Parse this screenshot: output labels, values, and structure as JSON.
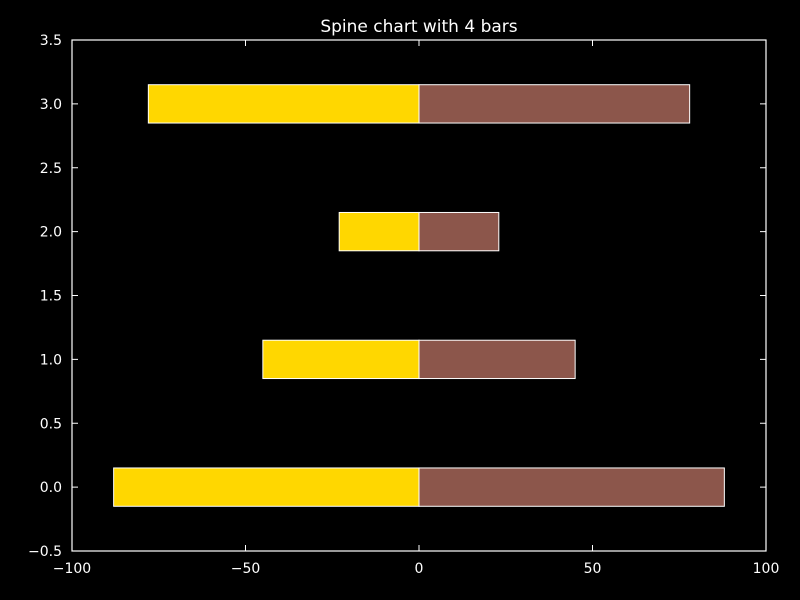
{
  "chart_data": {
    "type": "bar",
    "orientation": "horizontal",
    "title": "Spine chart with 4 bars",
    "xlabel": "",
    "ylabel": "",
    "xlim": [
      -100,
      100
    ],
    "ylim": [
      -0.5,
      3.5
    ],
    "grid": false,
    "categories": [
      0,
      1,
      2,
      3
    ],
    "series": [
      {
        "values": [
          -88,
          -45,
          -23,
          -78
        ],
        "color": "#FFD700"
      },
      {
        "values": [
          88,
          45,
          23,
          78
        ],
        "color": "#8C564B"
      }
    ],
    "bar_height": 0.3,
    "x_ticks": [
      {
        "value": -100,
        "label": "−100"
      },
      {
        "value": -50,
        "label": "−50"
      },
      {
        "value": 0,
        "label": "0"
      },
      {
        "value": 50,
        "label": "50"
      },
      {
        "value": 100,
        "label": "100"
      }
    ],
    "y_ticks": [
      {
        "value": -0.5,
        "label": "−0.5"
      },
      {
        "value": 0.0,
        "label": "0.0"
      },
      {
        "value": 0.5,
        "label": "0.5"
      },
      {
        "value": 1.0,
        "label": "1.0"
      },
      {
        "value": 1.5,
        "label": "1.5"
      },
      {
        "value": 2.0,
        "label": "2.0"
      },
      {
        "value": 2.5,
        "label": "2.5"
      },
      {
        "value": 3.0,
        "label": "3.0"
      },
      {
        "value": 3.5,
        "label": "3.5"
      }
    ],
    "background_color": "#000000",
    "foreground_color": "#FFFFFF"
  }
}
